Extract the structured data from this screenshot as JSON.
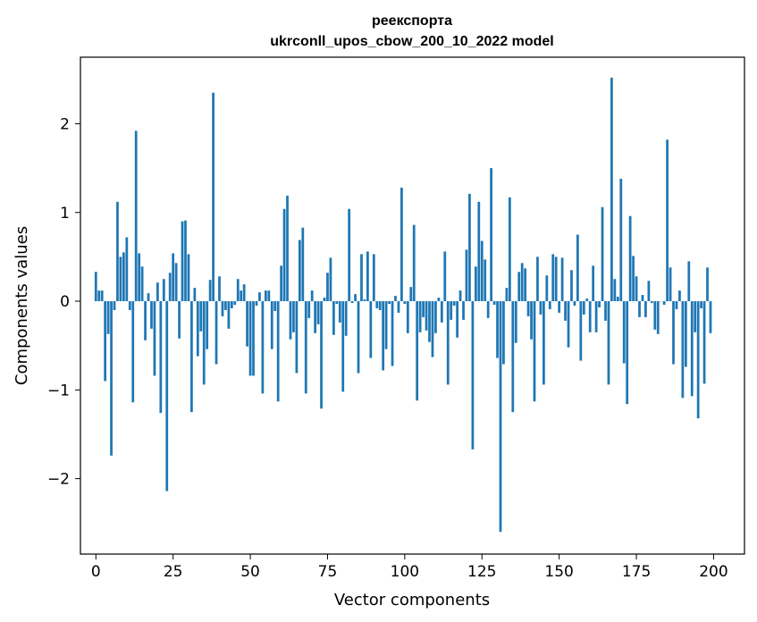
{
  "chart_data": {
    "type": "bar",
    "title_line1": "реекспорта",
    "title_line2": "ukrconll_upos_cbow_200_10_2022 model",
    "xlabel": "Vector components",
    "ylabel": "Components values",
    "xlim": [
      -5,
      210
    ],
    "ylim": [
      -2.85,
      2.75
    ],
    "xticks": [
      0,
      25,
      50,
      75,
      100,
      125,
      150,
      175,
      200
    ],
    "xtick_labels": [
      "0",
      "25",
      "50",
      "75",
      "100",
      "125",
      "150",
      "175",
      "200"
    ],
    "yticks": [
      -2,
      -1,
      0,
      1,
      2
    ],
    "ytick_labels": [
      "−2",
      "−1",
      "0",
      "1",
      "2"
    ],
    "bar_color": "#1f77b4",
    "x": [
      0,
      1,
      2,
      3,
      4,
      5,
      6,
      7,
      8,
      9,
      10,
      11,
      12,
      13,
      14,
      15,
      16,
      17,
      18,
      19,
      20,
      21,
      22,
      23,
      24,
      25,
      26,
      27,
      28,
      29,
      30,
      31,
      32,
      33,
      34,
      35,
      36,
      37,
      38,
      39,
      40,
      41,
      42,
      43,
      44,
      45,
      46,
      47,
      48,
      49,
      50,
      51,
      52,
      53,
      54,
      55,
      56,
      57,
      58,
      59,
      60,
      61,
      62,
      63,
      64,
      65,
      66,
      67,
      68,
      69,
      70,
      71,
      72,
      73,
      74,
      75,
      76,
      77,
      78,
      79,
      80,
      81,
      82,
      83,
      84,
      85,
      86,
      87,
      88,
      89,
      90,
      91,
      92,
      93,
      94,
      95,
      96,
      97,
      98,
      99,
      100,
      101,
      102,
      103,
      104,
      105,
      106,
      107,
      108,
      109,
      110,
      111,
      112,
      113,
      114,
      115,
      116,
      117,
      118,
      119,
      120,
      121,
      122,
      123,
      124,
      125,
      126,
      127,
      128,
      129,
      130,
      131,
      132,
      133,
      134,
      135,
      136,
      137,
      138,
      139,
      140,
      141,
      142,
      143,
      144,
      145,
      146,
      147,
      148,
      149,
      150,
      151,
      152,
      153,
      154,
      155,
      156,
      157,
      158,
      159,
      160,
      161,
      162,
      163,
      164,
      165,
      166,
      167,
      168,
      169,
      170,
      171,
      172,
      173,
      174,
      175,
      176,
      177,
      178,
      179,
      180,
      181,
      182,
      183,
      184,
      185,
      186,
      187,
      188,
      189,
      190,
      191,
      192,
      193,
      194,
      195,
      196,
      197,
      198,
      199
    ],
    "values": [
      0.33,
      0.12,
      0.12,
      -0.9,
      -0.37,
      -1.74,
      -0.1,
      1.12,
      0.5,
      0.55,
      0.72,
      -0.1,
      -1.14,
      1.92,
      0.54,
      0.39,
      -0.44,
      0.09,
      -0.31,
      -0.84,
      0.21,
      -1.26,
      0.25,
      -2.14,
      0.32,
      0.54,
      0.43,
      -0.42,
      0.9,
      0.91,
      0.53,
      -1.25,
      0.15,
      -0.62,
      -0.34,
      -0.94,
      -0.54,
      0.24,
      2.35,
      -0.71,
      0.28,
      -0.17,
      -0.1,
      -0.31,
      -0.08,
      -0.04,
      0.25,
      0.12,
      0.19,
      -0.51,
      -0.84,
      -0.84,
      -0.05,
      0.1,
      -1.04,
      0.12,
      0.12,
      -0.54,
      -0.11,
      -1.13,
      0.4,
      1.04,
      1.19,
      -0.43,
      -0.35,
      -0.81,
      0.69,
      0.83,
      -1.04,
      -0.19,
      0.12,
      -0.36,
      -0.26,
      -1.21,
      0.04,
      0.32,
      0.49,
      -0.38,
      -0.03,
      -0.24,
      -1.02,
      -0.39,
      1.04,
      -0.02,
      0.08,
      -0.81,
      0.53,
      0.02,
      0.56,
      -0.64,
      0.53,
      -0.08,
      -0.1,
      -0.78,
      -0.54,
      -0.03,
      -0.73,
      0.06,
      -0.13,
      1.28,
      -0.03,
      -0.36,
      0.16,
      0.86,
      -1.12,
      -0.35,
      -0.18,
      -0.33,
      -0.46,
      -0.63,
      -0.36,
      0.04,
      -0.24,
      0.56,
      -0.94,
      -0.21,
      -0.05,
      -0.41,
      0.12,
      -0.21,
      0.58,
      1.21,
      -1.67,
      0.39,
      1.12,
      0.68,
      0.47,
      -0.19,
      1.5,
      -0.04,
      -0.64,
      -2.6,
      -0.71,
      0.15,
      1.17,
      -1.25,
      -0.47,
      0.33,
      0.43,
      0.37,
      -0.17,
      -0.43,
      -1.13,
      0.5,
      -0.15,
      -0.94,
      0.29,
      -0.09,
      0.53,
      0.5,
      -0.13,
      0.49,
      -0.22,
      -0.52,
      0.35,
      -0.05,
      0.75,
      -0.67,
      -0.15,
      0.03,
      -0.35,
      0.4,
      -0.35,
      -0.07,
      1.06,
      -0.22,
      -0.94,
      2.52,
      0.25,
      0.05,
      1.38,
      -0.7,
      -1.16,
      0.96,
      0.51,
      0.28,
      -0.18,
      0.07,
      -0.18,
      0.23,
      -0.02,
      -0.32,
      -0.37,
      0.0,
      -0.04,
      1.82,
      0.38,
      -0.71,
      -0.09,
      0.12,
      -1.09,
      -0.74,
      0.45,
      -1.07,
      -0.35,
      -1.32,
      -0.08,
      -0.93,
      0.38,
      -0.36
    ]
  }
}
